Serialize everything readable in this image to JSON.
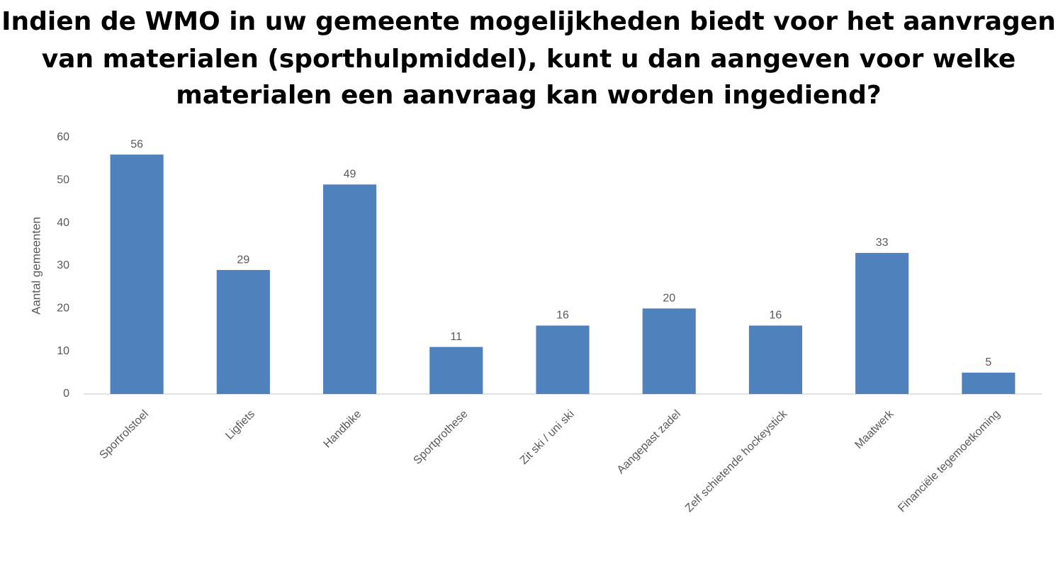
{
  "chart_data": {
    "type": "bar",
    "title": [
      "Indien de WMO in uw gemeente mogelijkheden biedt voor het aanvragen",
      "van materialen (sporthulpmiddel), kunt u dan aangeven voor welke",
      "materialen een aanvraag kan worden ingediend?"
    ],
    "y_label": "Aantal gemeenten",
    "categories": [
      "Sportrolstoel",
      "Ligfiets",
      "Handbike",
      "Sportprothese",
      "Zit ski / uni ski",
      "Aangepast zadel",
      "Zelf schietende hockeystick",
      "Maatwerk",
      "Financiële tegemoetkoming"
    ],
    "values": [
      56,
      29,
      49,
      11,
      16,
      20,
      16,
      33,
      5
    ],
    "color": "#4f81bd",
    "ylim": [
      0,
      60
    ],
    "yticks": [
      0,
      10,
      20,
      30,
      40,
      50,
      60
    ],
    "grid": false
  }
}
